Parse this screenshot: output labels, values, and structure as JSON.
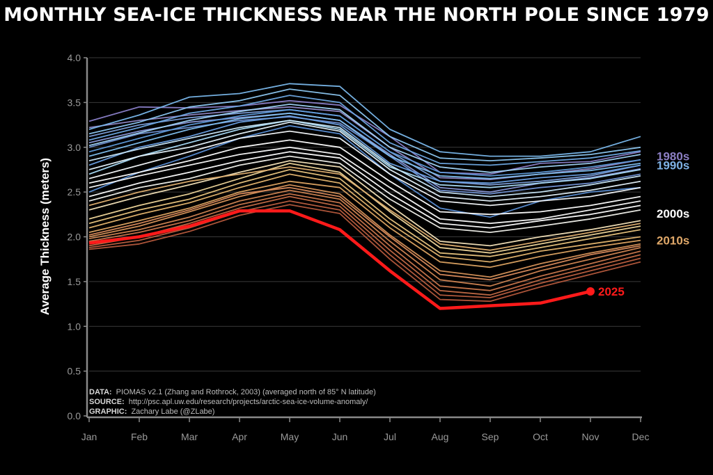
{
  "chart_data": {
    "type": "line",
    "title": "MONTHLY SEA-ICE THICKNESS NEAR THE NORTH POLE SINCE 1979",
    "xlabel": "",
    "ylabel": "Average Thickness (meters)",
    "categories": [
      "Jan",
      "Feb",
      "Mar",
      "Apr",
      "May",
      "Jun",
      "Jul",
      "Aug",
      "Sep",
      "Oct",
      "Nov",
      "Dec"
    ],
    "yticks": [
      "0.0",
      "0.5",
      "1.0",
      "1.5",
      "2.0",
      "2.5",
      "3.0",
      "3.5",
      "4.0"
    ],
    "ylim": [
      0,
      4
    ],
    "grid": true,
    "decade_labels": [
      {
        "text": "1980s",
        "color": "#8c7fc4",
        "value": 2.9
      },
      {
        "text": "1990s",
        "color": "#7fb2e6",
        "value": 2.8
      },
      {
        "text": "2000s",
        "color": "#ffffff",
        "value": 2.26
      },
      {
        "text": "2010s",
        "color": "#e0a869",
        "value": 1.96
      }
    ],
    "highlight": {
      "name": "2025",
      "color": "#ff1a1a",
      "values": [
        1.93,
        2.0,
        2.12,
        2.29,
        2.29,
        2.08,
        1.62,
        1.2,
        1.23,
        1.26,
        1.39,
        null
      ]
    },
    "series": [
      {
        "color": "#8a80c8",
        "values": [
          3.29,
          3.45,
          3.44,
          3.46,
          3.52,
          3.47,
          3.12,
          2.72,
          2.7,
          2.82,
          2.84,
          2.95
        ]
      },
      {
        "color": "#9088c6",
        "values": [
          3.22,
          3.3,
          3.36,
          3.41,
          3.45,
          3.4,
          3.0,
          2.66,
          2.64,
          2.7,
          2.76,
          2.86
        ]
      },
      {
        "color": "#7b9ed8",
        "values": [
          3.12,
          3.25,
          3.33,
          3.38,
          3.42,
          3.35,
          2.95,
          2.62,
          2.58,
          2.62,
          2.68,
          2.8
        ]
      },
      {
        "color": "#8a98d8",
        "values": [
          3.05,
          3.18,
          3.28,
          3.33,
          3.38,
          3.3,
          2.92,
          2.55,
          2.5,
          2.6,
          2.66,
          2.76
        ]
      },
      {
        "color": "#6f8fd0",
        "values": [
          3.0,
          3.15,
          3.22,
          3.3,
          3.34,
          3.27,
          2.9,
          2.52,
          2.48,
          2.55,
          2.6,
          2.7
        ]
      },
      {
        "color": "#7ab8ec",
        "values": [
          3.2,
          3.36,
          3.56,
          3.6,
          3.71,
          3.68,
          3.2,
          2.95,
          2.9,
          2.9,
          2.95,
          3.12
        ]
      },
      {
        "color": "#8cc6f0",
        "values": [
          3.15,
          3.28,
          3.45,
          3.52,
          3.65,
          3.58,
          3.12,
          2.88,
          2.85,
          2.88,
          2.92,
          3.0
        ]
      },
      {
        "color": "#6ea8e2",
        "values": [
          3.08,
          3.22,
          3.38,
          3.46,
          3.58,
          3.5,
          3.05,
          2.82,
          2.8,
          2.84,
          2.88,
          2.96
        ]
      },
      {
        "color": "#9fd2f4",
        "values": [
          3.02,
          3.16,
          3.3,
          3.4,
          3.48,
          3.42,
          3.0,
          2.78,
          2.72,
          2.78,
          2.82,
          2.92
        ]
      },
      {
        "color": "#5f9ad8",
        "values": [
          2.95,
          3.1,
          3.25,
          3.35,
          3.42,
          3.35,
          2.95,
          2.72,
          2.68,
          2.72,
          2.78,
          2.86
        ]
      },
      {
        "color": "#7fbfee",
        "values": [
          2.9,
          3.05,
          3.2,
          3.32,
          3.38,
          3.3,
          2.9,
          2.68,
          2.65,
          2.7,
          2.74,
          2.82
        ]
      },
      {
        "color": "#6a9fe0",
        "values": [
          2.8,
          3.0,
          3.12,
          3.28,
          3.35,
          3.25,
          2.82,
          2.62,
          2.6,
          2.66,
          2.7,
          2.8
        ]
      },
      {
        "color": "#a8daf6",
        "values": [
          2.7,
          2.9,
          3.05,
          3.2,
          3.3,
          3.2,
          2.78,
          2.58,
          2.55,
          2.6,
          2.65,
          2.75
        ]
      },
      {
        "color": "#5a8ed4",
        "values": [
          2.5,
          2.72,
          2.9,
          3.1,
          3.24,
          3.15,
          2.7,
          2.32,
          2.22,
          2.4,
          2.5,
          2.55
        ]
      },
      {
        "color": "#c8e6f8",
        "values": [
          2.85,
          2.98,
          3.1,
          3.22,
          3.3,
          3.22,
          2.8,
          2.5,
          2.45,
          2.5,
          2.58,
          2.68
        ]
      },
      {
        "color": "#e4f1fa",
        "values": [
          2.75,
          2.9,
          3.0,
          3.15,
          3.28,
          3.18,
          2.75,
          2.45,
          2.4,
          2.45,
          2.52,
          2.62
        ]
      },
      {
        "color": "#f4f8fb",
        "values": [
          2.65,
          2.8,
          2.95,
          3.1,
          3.18,
          3.1,
          2.7,
          2.4,
          2.35,
          2.4,
          2.45,
          2.55
        ]
      },
      {
        "color": "#ffffff",
        "values": [
          2.6,
          2.72,
          2.85,
          3.0,
          3.08,
          3.0,
          2.62,
          2.28,
          2.25,
          2.28,
          2.35,
          2.45
        ]
      },
      {
        "color": "#fafafa",
        "values": [
          2.55,
          2.68,
          2.8,
          2.92,
          3.0,
          2.92,
          2.55,
          2.2,
          2.15,
          2.2,
          2.3,
          2.4
        ]
      },
      {
        "color": "#ffffff",
        "values": [
          2.45,
          2.6,
          2.72,
          2.85,
          2.95,
          2.88,
          2.48,
          2.15,
          2.1,
          2.18,
          2.25,
          2.35
        ]
      },
      {
        "color": "#f0f0ea",
        "values": [
          2.4,
          2.55,
          2.65,
          2.8,
          2.9,
          2.82,
          2.42,
          2.1,
          2.05,
          2.12,
          2.2,
          2.3
        ]
      },
      {
        "color": "#f3e2b8",
        "values": [
          2.3,
          2.45,
          2.58,
          2.72,
          2.85,
          2.78,
          2.35,
          1.95,
          1.9,
          2.0,
          2.08,
          2.18
        ]
      },
      {
        "color": "#efd69a",
        "values": [
          2.2,
          2.35,
          2.48,
          2.65,
          2.82,
          2.72,
          2.28,
          1.88,
          1.82,
          1.92,
          2.02,
          2.12
        ]
      },
      {
        "color": "#e8c47e",
        "values": [
          2.15,
          2.3,
          2.42,
          2.6,
          2.75,
          2.65,
          2.2,
          1.82,
          1.78,
          1.88,
          1.98,
          2.08
        ]
      },
      {
        "color": "#e3b46e",
        "values": [
          2.1,
          2.25,
          2.38,
          2.55,
          2.7,
          2.6,
          2.15,
          1.78,
          1.72,
          1.84,
          1.92,
          2.0
        ]
      },
      {
        "color": "#dca362",
        "values": [
          2.05,
          2.18,
          2.32,
          2.5,
          2.62,
          2.55,
          2.1,
          1.72,
          1.66,
          1.78,
          1.88,
          1.96
        ]
      },
      {
        "color": "#d6925a",
        "values": [
          2.0,
          2.12,
          2.28,
          2.45,
          2.58,
          2.48,
          2.02,
          1.62,
          1.55,
          1.7,
          1.82,
          1.92
        ]
      },
      {
        "color": "#cf8452",
        "values": [
          1.98,
          2.08,
          2.22,
          2.4,
          2.52,
          2.42,
          1.95,
          1.52,
          1.45,
          1.62,
          1.75,
          1.88
        ]
      },
      {
        "color": "#c8764c",
        "values": [
          1.95,
          2.05,
          2.18,
          2.36,
          2.48,
          2.38,
          1.9,
          1.45,
          1.4,
          1.56,
          1.7,
          1.84
        ]
      },
      {
        "color": "#c26a46",
        "values": [
          1.9,
          2.0,
          2.15,
          2.32,
          2.45,
          2.34,
          1.85,
          1.4,
          1.35,
          1.52,
          1.66,
          1.8
        ]
      },
      {
        "color": "#bb5f40",
        "values": [
          1.88,
          1.96,
          2.1,
          2.28,
          2.4,
          2.3,
          1.8,
          1.35,
          1.32,
          1.48,
          1.62,
          1.76
        ]
      },
      {
        "color": "#d88a5c",
        "values": [
          2.02,
          2.15,
          2.3,
          2.48,
          2.55,
          2.45,
          2.0,
          1.58,
          1.52,
          1.66,
          1.8,
          1.9
        ]
      },
      {
        "color": "#b4583c",
        "values": [
          1.86,
          1.92,
          2.06,
          2.24,
          2.36,
          2.26,
          1.75,
          1.3,
          1.28,
          1.44,
          1.58,
          1.72
        ]
      },
      {
        "color": "#e0b070",
        "values": [
          2.35,
          2.5,
          2.62,
          2.7,
          2.78,
          2.7,
          2.3,
          1.92,
          1.85,
          1.95,
          2.05,
          2.15
        ]
      }
    ]
  },
  "footer": {
    "data_label": "DATA:",
    "data_text": "PIOMAS v2.1 (Zhang and Rothrock, 2003) (averaged north of 85° N latitude)",
    "source_label": "SOURCE:",
    "source_text": "http://psc.apl.uw.edu/research/projects/arctic-sea-ice-volume-anomaly/",
    "graphic_label": "GRAPHIC:",
    "graphic_text": "Zachary Labe (@ZLabe)"
  }
}
